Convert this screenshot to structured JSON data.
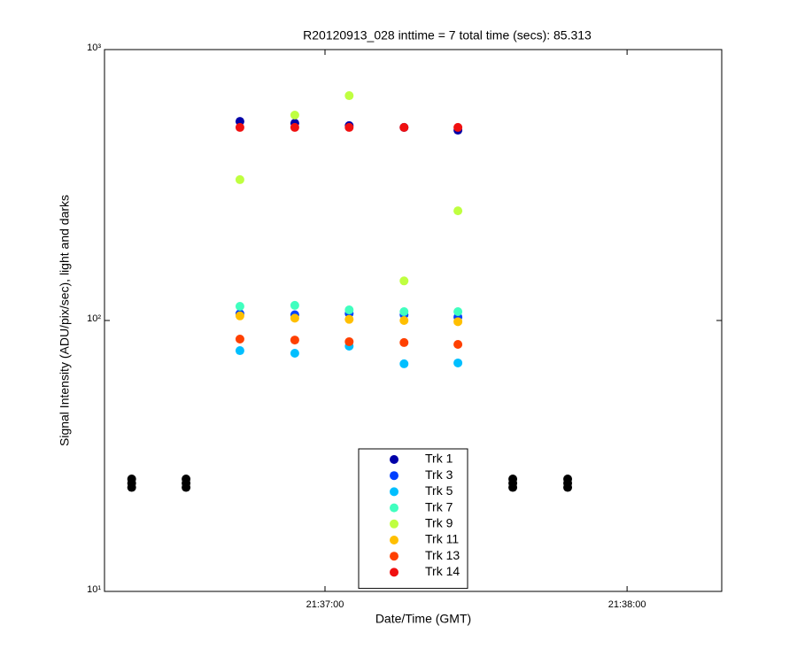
{
  "chart_data": {
    "type": "scatter",
    "title": "R20120913_028 inttime = 7 total time (secs): 85.313",
    "x_label": "Date/Time (GMT)",
    "y_label": "Signal Intensity (ADU/pix/sec), light and darks",
    "log_y": true,
    "xlim": [
      77776.2,
      77898.8
    ],
    "xticks": [
      {
        "value": 77820,
        "label": "21:37:00"
      },
      {
        "value": 77880,
        "label": "21:38:00"
      }
    ],
    "ylim": [
      10,
      1000
    ],
    "yticks": [
      {
        "value": 10,
        "label": "10¹"
      },
      {
        "value": 100,
        "label": "10²"
      },
      {
        "value": 1000,
        "label": "10³"
      }
    ],
    "x": [
      77803.1,
      77814.0,
      77824.8,
      77835.7,
      77846.4
    ],
    "series": [
      {
        "name": "Trk 1",
        "color": "#0000a8",
        "values": [
          543,
          535,
          524,
          516,
          504
        ]
      },
      {
        "name": "Trk 3",
        "color": "#0040ff",
        "values": [
          106,
          105,
          106,
          105,
          103
        ]
      },
      {
        "name": "Trk 5",
        "color": "#00bfff",
        "values": [
          77.4,
          75.7,
          80.4,
          69.2,
          69.7
        ]
      },
      {
        "name": "Trk 7",
        "color": "#40ffbf",
        "values": [
          112.8,
          113.7,
          109.4,
          107.8,
          107.8
        ]
      },
      {
        "name": "Trk 9",
        "color": "#bfff40",
        "values": [
          331,
          573,
          676,
          140,
          254
        ]
      },
      {
        "name": "Trk 11",
        "color": "#ffbf00",
        "values": [
          104,
          102,
          101,
          100,
          99
        ]
      },
      {
        "name": "Trk 13",
        "color": "#ff4000",
        "values": [
          85.4,
          84.7,
          83.5,
          82.9,
          81.6
        ]
      },
      {
        "name": "Trk 14",
        "color": "#f01010",
        "values": [
          516,
          516,
          516,
          516,
          516
        ]
      }
    ],
    "darks": {
      "color": "#000000",
      "x": [
        77781.6,
        77781.6,
        77781.6,
        77792.4,
        77792.4,
        77792.4,
        77857.3,
        77857.3,
        77857.3,
        77868.2,
        77868.2,
        77868.2
      ],
      "values": [
        26.0,
        25.1,
        24.2,
        26.0,
        25.1,
        24.2,
        26.0,
        25.1,
        24.2,
        26.0,
        25.1,
        24.2
      ]
    }
  }
}
